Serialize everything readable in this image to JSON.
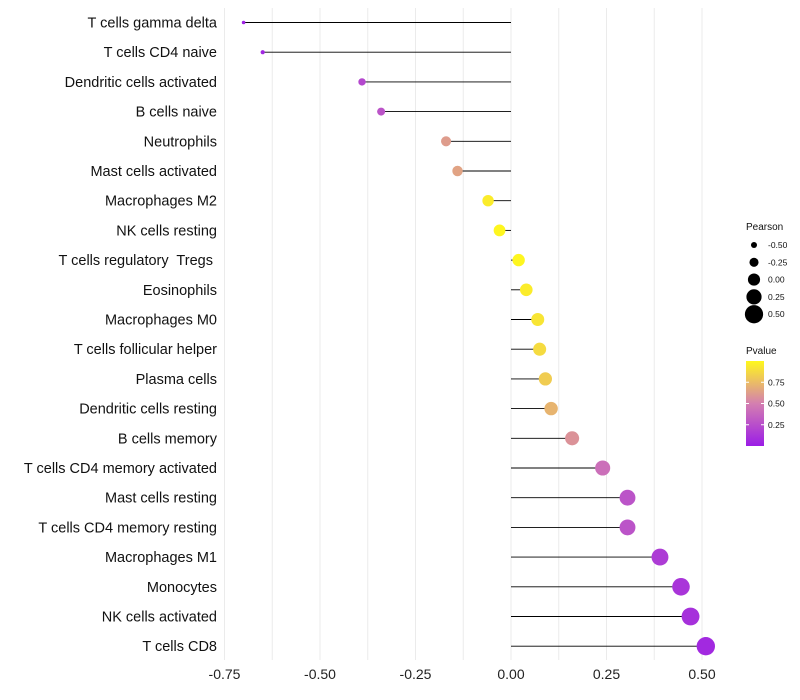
{
  "chart_data": {
    "type": "lollipop",
    "title": "",
    "xlabel": "",
    "ylabel": "",
    "xlim": [
      -0.75,
      0.57
    ],
    "x_ticks": [
      -0.75,
      -0.5,
      -0.25,
      0.0,
      0.25,
      0.5
    ],
    "x_tick_labels": [
      "-0.75",
      "-0.50",
      "-0.25",
      "0.00",
      "0.25",
      "0.50"
    ],
    "grid": true,
    "categories": [
      "T cells gamma delta",
      "T cells CD4 naive",
      "Dendritic cells activated",
      "B cells naive",
      "Neutrophils",
      "Mast cells activated",
      "Macrophages M2",
      "NK cells resting",
      "T cells regulatory  Tregs ",
      "Eosinophils",
      "Macrophages M0",
      "T cells follicular helper",
      "Plasma cells",
      "Dendritic cells resting",
      "B cells memory",
      "T cells CD4 memory activated",
      "Mast cells resting",
      "T cells CD4 memory resting",
      "Macrophages M1",
      "Monocytes",
      "NK cells activated",
      "T cells CD8"
    ],
    "pearson": [
      -0.7,
      -0.65,
      -0.39,
      -0.34,
      -0.17,
      -0.14,
      -0.06,
      -0.03,
      0.02,
      0.04,
      0.07,
      0.075,
      0.09,
      0.105,
      0.16,
      0.24,
      0.305,
      0.305,
      0.39,
      0.445,
      0.47,
      0.51
    ],
    "pvalue": [
      0.03,
      0.05,
      0.22,
      0.28,
      0.62,
      0.65,
      0.95,
      0.99,
      0.99,
      0.95,
      0.92,
      0.88,
      0.82,
      0.72,
      0.58,
      0.42,
      0.28,
      0.28,
      0.16,
      0.12,
      0.1,
      0.06
    ],
    "legend": {
      "position": "right",
      "size_title": "Pearson",
      "size_labels": [
        "-0.50",
        "-0.25",
        "0.00",
        "0.25",
        "0.50"
      ],
      "size_values": [
        -0.5,
        -0.25,
        0.0,
        0.25,
        0.5
      ],
      "color_title": "Pvalue",
      "color_labels": [
        "0.75",
        "0.50",
        "0.25"
      ],
      "color_values": [
        0.75,
        0.5,
        0.25
      ],
      "color_range": [
        0.0,
        1.0
      ]
    },
    "colors": {
      "low": "#9b1de6",
      "mid": "#d47fb0",
      "high": "#fff81c",
      "stem": "#000000",
      "grid": "#ebebeb"
    }
  }
}
